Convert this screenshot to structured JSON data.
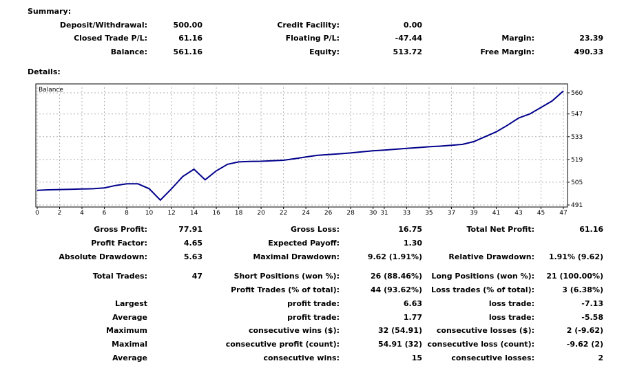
{
  "summary": {
    "title": "Summary:",
    "deposit_label": "Deposit/Withdrawal:",
    "deposit_value": "500.00",
    "credit_label": "Credit Facility:",
    "credit_value": "0.00",
    "closed_label": "Closed Trade P/L:",
    "closed_value": "61.16",
    "floating_label": "Floating P/L:",
    "floating_value": "-47.44",
    "margin_label": "Margin:",
    "margin_value": "23.39",
    "balance_label": "Balance:",
    "balance_value": "561.16",
    "equity_label": "Equity:",
    "equity_value": "513.72",
    "free_margin_label": "Free Margin:",
    "free_margin_value": "490.33"
  },
  "details": {
    "title": "Details:"
  },
  "chart_data": {
    "type": "line",
    "title": "Balance",
    "x_ticks": [
      0,
      2,
      4,
      6,
      8,
      10,
      12,
      14,
      16,
      18,
      20,
      22,
      24,
      26,
      28,
      30,
      31,
      33,
      35,
      37,
      39,
      41,
      43,
      45,
      47
    ],
    "y_ticks": [
      491,
      505,
      519,
      533,
      547,
      560
    ],
    "ylim": [
      491,
      560
    ],
    "grid": true,
    "series": [
      {
        "name": "Balance",
        "values": [
          500.0,
          500.3,
          500.5,
          500.6,
          500.8,
          501.0,
          501.5,
          503.0,
          504.0,
          504.0,
          501.0,
          494.0,
          501.0,
          508.5,
          513.0,
          506.5,
          512.0,
          516.0,
          517.5,
          517.8,
          517.9,
          518.2,
          518.5,
          519.5,
          520.5,
          521.5,
          522.0,
          522.5,
          523.0,
          523.7,
          524.3,
          524.8,
          525.3,
          525.8,
          526.3,
          526.8,
          527.2,
          527.7,
          528.3,
          530.0,
          533.0,
          536.0,
          540.0,
          544.5,
          547.0,
          551.0,
          555.0,
          561.16
        ]
      }
    ]
  },
  "stats": {
    "gross_profit_label": "Gross Profit:",
    "gross_profit_value": "77.91",
    "gross_loss_label": "Gross Loss:",
    "gross_loss_value": "16.75",
    "total_net_profit_label": "Total Net Profit:",
    "total_net_profit_value": "61.16",
    "profit_factor_label": "Profit Factor:",
    "profit_factor_value": "4.65",
    "expected_payoff_label": "Expected Payoff:",
    "expected_payoff_value": "1.30",
    "absolute_dd_label": "Absolute Drawdown:",
    "absolute_dd_value": "5.63",
    "maximal_dd_label": "Maximal Drawdown:",
    "maximal_dd_value": "9.62 (1.91%)",
    "relative_dd_label": "Relative Drawdown:",
    "relative_dd_value": "1.91% (9.62)",
    "total_trades_label": "Total Trades:",
    "total_trades_value": "47",
    "short_label": "Short Positions (won %):",
    "short_value": "26 (88.46%)",
    "long_label": "Long Positions (won %):",
    "long_value": "21 (100.00%)",
    "profit_trades_label": "Profit Trades (% of total):",
    "profit_trades_value": "44 (93.62%)",
    "loss_trades_label": "Loss trades (% of total):",
    "loss_trades_value": "3 (6.38%)",
    "largest_label": "Largest",
    "largest_profit_label": "profit trade:",
    "largest_profit_value": "6.63",
    "largest_loss_label": "loss trade:",
    "largest_loss_value": "-7.13",
    "average_label": "Average",
    "average_profit_label": "profit trade:",
    "average_profit_value": "1.77",
    "average_loss_label": "loss trade:",
    "average_loss_value": "-5.58",
    "maximum_label": "Maximum",
    "max_cons_wins_label": "consecutive wins ($):",
    "max_cons_wins_value": "32 (54.91)",
    "max_cons_losses_label": "consecutive losses ($):",
    "max_cons_losses_value": "2 (-9.62)",
    "maximal_label": "Maximal",
    "maximal_cons_profit_label": "consecutive profit (count):",
    "maximal_cons_profit_value": "54.91 (32)",
    "maximal_cons_loss_label": "consecutive loss (count):",
    "maximal_cons_loss_value": "-9.62 (2)",
    "average2_label": "Average",
    "avg_cons_wins_label": "consecutive wins:",
    "avg_cons_wins_value": "15",
    "avg_cons_losses_label": "consecutive losses:",
    "avg_cons_losses_value": "2"
  }
}
